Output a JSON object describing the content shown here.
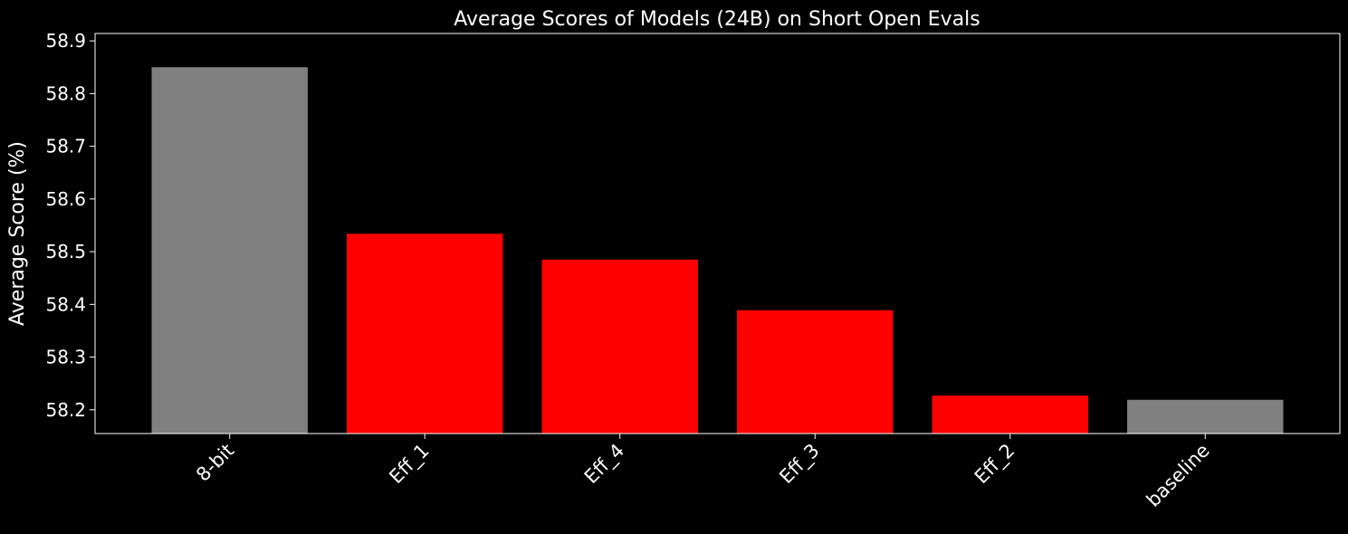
{
  "chart_data": {
    "type": "bar",
    "title": "Average Scores of Models (24B) on Short Open Evals",
    "y_label": "Average Score (%)",
    "categories": [
      "8-bit",
      "Eff_1",
      "Eff_4",
      "Eff_3",
      "Eff_2",
      "baseline"
    ],
    "values": [
      58.85,
      58.534,
      58.485,
      58.389,
      58.227,
      58.219
    ],
    "colors": [
      "#808080",
      "#ff0000",
      "#ff0000",
      "#ff0000",
      "#ff0000",
      "#808080"
    ],
    "ylim": [
      58.155,
      58.914
    ],
    "yticks": [
      58.2,
      58.3,
      58.4,
      58.5,
      58.6,
      58.7,
      58.8,
      58.9
    ]
  }
}
